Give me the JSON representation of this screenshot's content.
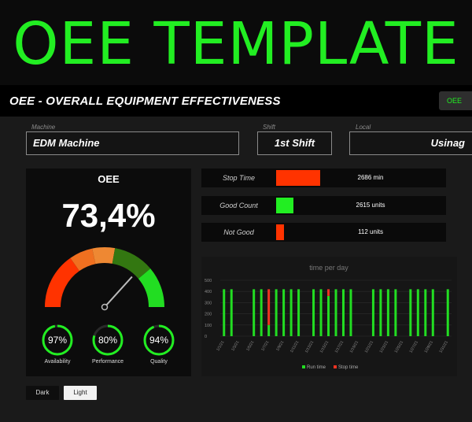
{
  "banner": {
    "title": "OEE TEMPLATE"
  },
  "header": {
    "title": "OEE - OVERALL EQUIPMENT EFFECTIVENESS",
    "button_label": "OEE"
  },
  "fields": {
    "machine": {
      "label": "Machine",
      "value": "EDM Machine"
    },
    "shift": {
      "label": "Shift",
      "value": "1st Shift"
    },
    "local": {
      "label": "Local",
      "value": "Usinag"
    }
  },
  "oee": {
    "title": "OEE",
    "value_text": "73,4%",
    "value": 73.4,
    "gauge_colors": [
      "#ff3300",
      "#f07020",
      "#ee8833",
      "#337711",
      "#22dd22"
    ]
  },
  "metrics": [
    {
      "label": "Availability",
      "value_text": "97%",
      "value": 97
    },
    {
      "label": "Performance",
      "value_text": "80%",
      "value": 80
    },
    {
      "label": "Quality",
      "value_text": "94%",
      "value": 94
    }
  ],
  "kpis": [
    {
      "label": "Stop Time",
      "value_text": "2686 min",
      "fraction": 1.0,
      "color": "#ff3300"
    },
    {
      "label": "Good Count",
      "value_text": "2615 units",
      "fraction": 0.39,
      "color": "#22ee22"
    },
    {
      "label": "Not Good",
      "value_text": "112 units",
      "fraction": 0.17,
      "color": "#ff3300"
    }
  ],
  "chart_data": {
    "type": "bar",
    "title": "time per day",
    "ylim": [
      0,
      500
    ],
    "yticks": [
      0,
      100,
      200,
      300,
      400,
      500
    ],
    "categories": [
      "1/1/21",
      "1/2/21",
      "1/3/21",
      "1/4/21",
      "1/5/21",
      "1/6/21",
      "1/7/21",
      "1/8/21",
      "1/9/21",
      "1/10/21",
      "1/11/21",
      "1/12/21",
      "1/13/21",
      "1/14/21",
      "1/15/21",
      "1/16/21",
      "1/17/21",
      "1/18/21",
      "1/19/21",
      "1/20/21",
      "1/21/21",
      "1/22/21",
      "1/23/21",
      "1/24/21",
      "1/25/21",
      "1/26/21",
      "1/27/21",
      "1/28/21",
      "1/29/21",
      "1/30/21",
      "1/31/21"
    ],
    "xtick_labels": [
      "1/1/21",
      "1/3/21",
      "1/5/21",
      "1/7/21",
      "1/9/21",
      "1/11/21",
      "1/13/21",
      "1/15/21",
      "1/17/21",
      "1/19/21",
      "1/21/21",
      "1/23/21",
      "1/25/21",
      "1/27/21",
      "1/29/21",
      "1/31/21"
    ],
    "series": [
      {
        "name": "Run time",
        "color": "#22dd22",
        "values": [
          420,
          420,
          0,
          0,
          420,
          420,
          100,
          420,
          420,
          420,
          420,
          0,
          420,
          420,
          360,
          420,
          420,
          420,
          0,
          0,
          420,
          420,
          420,
          420,
          0,
          420,
          420,
          420,
          420,
          0,
          420
        ]
      },
      {
        "name": "Stop time",
        "color": "#ee3322",
        "values": [
          0,
          0,
          0,
          0,
          0,
          0,
          320,
          0,
          0,
          0,
          0,
          0,
          0,
          0,
          60,
          0,
          0,
          0,
          0,
          0,
          0,
          0,
          0,
          0,
          0,
          0,
          0,
          0,
          0,
          0,
          0
        ]
      }
    ],
    "stacked": true,
    "legend": "bottom",
    "grid": true
  },
  "theme": {
    "dark_label": "Dark",
    "light_label": "Light"
  }
}
